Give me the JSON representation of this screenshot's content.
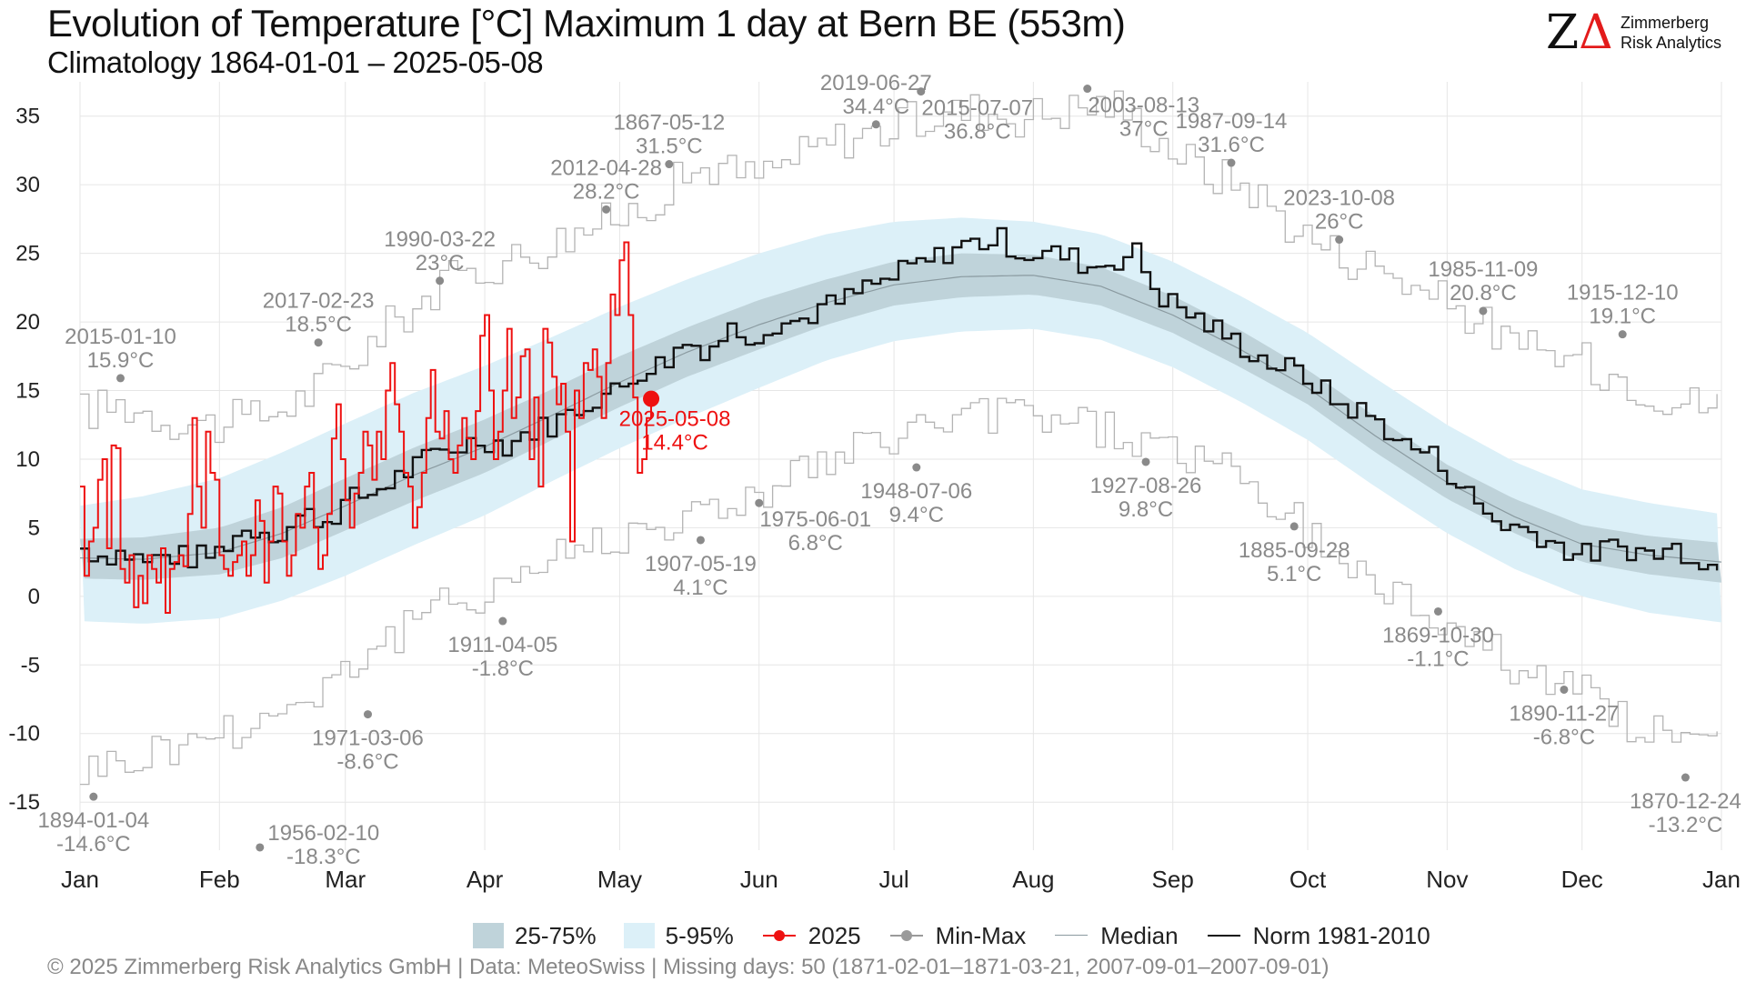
{
  "header": {
    "title": "Evolution of Temperature [°C] Maximum 1 day at Bern  BE (553m)",
    "subtitle": "Climatology 1864-01-01 – 2025-05-08"
  },
  "logo": {
    "mark": "ZΔ",
    "line1": "Zimmerberg",
    "line2": "Risk Analytics"
  },
  "footer": "©  2025 Zimmerberg Risk Analytics GmbH | Data: MeteoSwiss | Missing days: 50 (1871-02-01–1871-03-21, 2007-09-01–2007-09-01)",
  "colors": {
    "band_25_75": "#bfd3da",
    "band_5_95": "#dcf0f8",
    "current_year": "#ee1111",
    "minmax": "#b4b4b4",
    "minmax_label": "#8a8a8a",
    "median": "#8a9aa0",
    "norm": "#111111",
    "grid": "#e6e6e6"
  },
  "chart_data": {
    "type": "line",
    "ylim": [
      -18.5,
      37.5
    ],
    "yticks": [
      -15,
      -10,
      -5,
      0,
      5,
      10,
      15,
      20,
      25,
      30,
      35
    ],
    "xlim": [
      1,
      366
    ],
    "xticks": [
      {
        "label": "Jan",
        "day": 1
      },
      {
        "label": "Feb",
        "day": 32
      },
      {
        "label": "Mar",
        "day": 60
      },
      {
        "label": "Apr",
        "day": 91
      },
      {
        "label": "May",
        "day": 121
      },
      {
        "label": "Jun",
        "day": 152
      },
      {
        "label": "Jul",
        "day": 182
      },
      {
        "label": "Aug",
        "day": 213
      },
      {
        "label": "Sep",
        "day": 244
      },
      {
        "label": "Oct",
        "day": 274
      },
      {
        "label": "Nov",
        "day": 305
      },
      {
        "label": "Dec",
        "day": 335
      },
      {
        "label": "Jan",
        "day": 366
      }
    ],
    "grid": true,
    "legend_position": "bottom",
    "legend": [
      {
        "label": "25-75%",
        "kind": "band_25_75"
      },
      {
        "label": "5-95%",
        "kind": "band_5_95"
      },
      {
        "label": "2025",
        "kind": "current_year"
      },
      {
        "label": "Min-Max",
        "kind": "minmax"
      },
      {
        "label": "Median",
        "kind": "median"
      },
      {
        "label": "Norm 1981-2010",
        "kind": "norm"
      }
    ],
    "climatology": {
      "days": [
        1,
        15,
        32,
        46,
        60,
        75,
        91,
        106,
        121,
        136,
        152,
        167,
        182,
        197,
        213,
        228,
        244,
        259,
        274,
        289,
        305,
        320,
        335,
        350,
        366
      ],
      "median": [
        2.8,
        2.7,
        3.2,
        4.6,
        6.6,
        8.8,
        10.9,
        13.2,
        15.6,
        17.8,
        19.8,
        21.4,
        22.7,
        23.3,
        23.4,
        22.6,
        20.5,
        18.0,
        15.2,
        11.7,
        8.3,
        5.8,
        3.8,
        3.0,
        2.5
      ],
      "p25": [
        1.3,
        1.2,
        1.6,
        2.8,
        4.8,
        6.9,
        9.0,
        11.4,
        13.8,
        16.0,
        18.0,
        19.8,
        21.2,
        21.8,
        22.0,
        21.2,
        19.2,
        16.7,
        14.0,
        10.5,
        7.1,
        4.6,
        2.5,
        1.6,
        1.0
      ],
      "p75": [
        4.2,
        4.3,
        5.0,
        6.5,
        8.6,
        10.8,
        12.9,
        15.1,
        17.5,
        19.6,
        21.6,
        23.1,
        24.4,
        25.0,
        24.9,
        24.0,
        21.9,
        19.4,
        16.5,
        13.1,
        9.6,
        7.1,
        5.2,
        4.4,
        3.9
      ],
      "p05": [
        -1.8,
        -2.0,
        -1.6,
        -0.3,
        1.5,
        3.7,
        5.9,
        8.4,
        10.8,
        13.0,
        15.2,
        17.2,
        18.6,
        19.3,
        19.5,
        18.7,
        16.7,
        14.2,
        11.4,
        8.0,
        4.6,
        2.0,
        0.0,
        -1.2,
        -1.9
      ],
      "p95": [
        6.6,
        7.3,
        8.6,
        10.5,
        12.6,
        14.8,
        16.8,
        18.9,
        21.1,
        23.1,
        25.0,
        26.4,
        27.3,
        27.6,
        27.3,
        26.4,
        24.4,
        21.9,
        19.2,
        15.9,
        12.5,
        9.8,
        7.8,
        6.8,
        6.0
      ]
    },
    "series": [
      {
        "name": "2025",
        "days": [
          1,
          2,
          3,
          4,
          5,
          6,
          7,
          8,
          9,
          10,
          11,
          12,
          13,
          14,
          15,
          16,
          17,
          18,
          19,
          20,
          21,
          22,
          23,
          24,
          25,
          26,
          27,
          28,
          29,
          30,
          31,
          32,
          33,
          34,
          35,
          36,
          37,
          38,
          39,
          40,
          41,
          42,
          43,
          44,
          45,
          46,
          47,
          48,
          49,
          50,
          51,
          52,
          53,
          54,
          55,
          56,
          57,
          58,
          59,
          60,
          61,
          62,
          63,
          64,
          65,
          66,
          67,
          68,
          69,
          70,
          71,
          72,
          73,
          74,
          75,
          76,
          77,
          78,
          79,
          80,
          81,
          82,
          83,
          84,
          85,
          86,
          87,
          88,
          89,
          90,
          91,
          92,
          93,
          94,
          95,
          96,
          97,
          98,
          99,
          100,
          101,
          102,
          103,
          104,
          105,
          106,
          107,
          108,
          109,
          110,
          111,
          112,
          113,
          114,
          115,
          116,
          117,
          118,
          119,
          120,
          121,
          122,
          123,
          124,
          125,
          126,
          127,
          128
        ],
        "values": [
          8.0,
          1.5,
          4.0,
          5.0,
          8.5,
          10.0,
          3.5,
          11.0,
          10.8,
          2.0,
          1.0,
          3.0,
          -0.8,
          1.5,
          -0.5,
          3.0,
          2.0,
          1.0,
          3.5,
          -1.2,
          2.0,
          2.5,
          3.0,
          2.2,
          6.0,
          13.0,
          8.0,
          5.0,
          12.0,
          9.0,
          8.5,
          3.0,
          2.0,
          1.5,
          2.5,
          3.0,
          4.0,
          1.5,
          3.0,
          7.0,
          5.5,
          1.0,
          4.0,
          8.0,
          7.5,
          4.0,
          1.5,
          3.0,
          6.0,
          5.0,
          8.0,
          9.0,
          5.0,
          2.0,
          3.0,
          6.0,
          11.5,
          14.0,
          10.0,
          7.0,
          5.0,
          7.5,
          9.0,
          12.0,
          11.0,
          8.5,
          12.0,
          10.0,
          15.0,
          17.0,
          14.0,
          12.0,
          9.0,
          8.0,
          5.0,
          6.5,
          9.0,
          13.0,
          16.5,
          12.0,
          11.5,
          13.5,
          10.0,
          9.0,
          11.0,
          13.0,
          11.5,
          10.0,
          13.5,
          19.0,
          20.5,
          15.0,
          10.0,
          12.0,
          15.0,
          19.5,
          13.0,
          14.5,
          17.5,
          18.0,
          10.0,
          14.5,
          8.0,
          19.5,
          18.5,
          16.0,
          14.0,
          15.5,
          12.0,
          4.0,
          15.0,
          13.0,
          17.0,
          16.5,
          18.0,
          16.0,
          13.0,
          17.0,
          22.0,
          20.5,
          24.5,
          25.8,
          20.5,
          14.5,
          9.0,
          10.0,
          13.0,
          14.4
        ]
      },
      {
        "name": "Min-Max",
        "role": "max",
        "days": [
          1,
          10,
          20,
          30,
          40,
          50,
          60,
          70,
          80,
          90,
          100,
          110,
          120,
          130,
          140,
          150,
          160,
          170,
          180,
          190,
          200,
          210,
          220,
          230,
          240,
          250,
          260,
          270,
          280,
          290,
          300,
          310,
          320,
          330,
          340,
          350,
          360,
          366
        ],
        "values": [
          13.5,
          14.0,
          13.0,
          12.5,
          13.0,
          14.5,
          17.0,
          20.0,
          22.5,
          24.0,
          25.0,
          26.5,
          27.5,
          29.5,
          31.5,
          30.5,
          32.0,
          33.5,
          34.0,
          35.0,
          35.5,
          35.0,
          35.5,
          36.0,
          33.5,
          31.0,
          30.0,
          27.0,
          25.0,
          24.0,
          22.0,
          20.5,
          18.0,
          17.5,
          16.5,
          15.0,
          14.0,
          14.0
        ]
      },
      {
        "name": "Min-Max",
        "role": "min",
        "days": [
          1,
          10,
          20,
          30,
          40,
          50,
          60,
          70,
          80,
          90,
          100,
          110,
          120,
          130,
          140,
          150,
          160,
          170,
          180,
          190,
          200,
          210,
          220,
          230,
          240,
          250,
          260,
          270,
          280,
          290,
          300,
          310,
          320,
          330,
          340,
          350,
          360,
          366
        ],
        "values": [
          -12.5,
          -12.0,
          -11.0,
          -10.0,
          -9.0,
          -7.5,
          -5.0,
          -3.0,
          -1.0,
          0.5,
          2.0,
          3.5,
          4.5,
          5.5,
          6.0,
          7.5,
          9.0,
          10.0,
          11.5,
          12.5,
          13.0,
          13.5,
          13.0,
          12.0,
          11.0,
          10.0,
          8.0,
          5.5,
          3.0,
          0.5,
          -1.0,
          -3.0,
          -5.0,
          -6.5,
          -8.0,
          -10.0,
          -11.0,
          -11.0
        ]
      }
    ],
    "norm_1981_2010": {
      "days": [
        1,
        5,
        10,
        15,
        20,
        25,
        30,
        35,
        40,
        45,
        50,
        55,
        60,
        65,
        70,
        75,
        80,
        85,
        90,
        95,
        100,
        105,
        110,
        115,
        120,
        125,
        130,
        135,
        140,
        145,
        150,
        155,
        160,
        165,
        170,
        175,
        180,
        185,
        190,
        195,
        200,
        205,
        210,
        215,
        220,
        225,
        230,
        235,
        240,
        245,
        250,
        255,
        260,
        265,
        270,
        275,
        280,
        285,
        290,
        295,
        300,
        305,
        310,
        315,
        320,
        325,
        330,
        335,
        340,
        345,
        350,
        355,
        360,
        366
      ],
      "values": [
        3.5,
        3.0,
        3.2,
        2.5,
        3.0,
        2.8,
        3.0,
        4.5,
        5.0,
        4.5,
        6.0,
        5.5,
        7.0,
        7.5,
        8.5,
        9.5,
        10.5,
        11.0,
        11.5,
        11.0,
        12.0,
        12.5,
        13.5,
        14.5,
        15.0,
        16.5,
        17.0,
        18.5,
        18.0,
        19.5,
        19.0,
        20.0,
        20.0,
        21.0,
        21.5,
        22.5,
        23.0,
        24.0,
        24.5,
        25.5,
        25.8,
        26.0,
        25.0,
        25.0,
        24.8,
        24.0,
        24.5,
        25.0,
        22.0,
        21.0,
        20.0,
        19.0,
        18.0,
        17.0,
        16.5,
        15.5,
        14.0,
        13.5,
        12.5,
        11.0,
        10.5,
        9.0,
        7.0,
        5.5,
        5.0,
        4.5,
        3.5,
        3.0,
        3.5,
        3.5,
        3.0,
        3.5,
        3.0,
        1.6
      ]
    },
    "annotations": [
      {
        "date": "2015-01-10",
        "value": 15.9,
        "day": 10,
        "text": "2015-01-10",
        "sub": "15.9°C",
        "pos": "above"
      },
      {
        "date": "1894-01-04",
        "value": -14.6,
        "day": 4,
        "text": "1894-01-04",
        "sub": "-14.6°C",
        "pos": "below"
      },
      {
        "date": "2017-02-23",
        "value": 18.5,
        "day": 54,
        "text": "2017-02-23",
        "sub": "18.5°C",
        "pos": "above"
      },
      {
        "date": "1956-02-10",
        "value": -18.3,
        "day": 41,
        "text": "1956-02-10",
        "sub": "-18.3°C",
        "pos": "upper"
      },
      {
        "date": "1990-03-22",
        "value": 23.0,
        "day": 81,
        "text": "1990-03-22",
        "sub": "23°C",
        "pos": "above"
      },
      {
        "date": "1971-03-06",
        "value": -8.6,
        "day": 65,
        "text": "1971-03-06",
        "sub": "-8.6°C",
        "pos": "below"
      },
      {
        "date": "2012-04-28",
        "value": 28.2,
        "day": 118,
        "text": "2012-04-28",
        "sub": "28.2°C",
        "pos": "above"
      },
      {
        "date": "1911-04-05",
        "value": -1.8,
        "day": 95,
        "text": "1911-04-05",
        "sub": "-1.8°C",
        "pos": "below"
      },
      {
        "date": "1867-05-12",
        "value": 31.5,
        "day": 132,
        "text": "1867-05-12",
        "sub": "31.5°C",
        "pos": "above"
      },
      {
        "date": "1907-05-19",
        "value": 4.1,
        "day": 139,
        "text": "1907-05-19",
        "sub": "4.1°C",
        "pos": "below"
      },
      {
        "date": "2019-06-27",
        "value": 34.4,
        "day": 178,
        "text": "2019-06-27",
        "sub": "34.4°C",
        "pos": "above"
      },
      {
        "date": "1975-06-01",
        "value": 6.8,
        "day": 152,
        "text": "1975-06-01",
        "sub": "6.8°C",
        "pos": "right-below"
      },
      {
        "date": "2015-07-07",
        "value": 36.8,
        "day": 188,
        "text": "2015-07-07",
        "sub": "36.8°C",
        "pos": "right-below"
      },
      {
        "date": "1948-07-06",
        "value": 9.4,
        "day": 187,
        "text": "1948-07-06",
        "sub": "9.4°C",
        "pos": "below"
      },
      {
        "date": "2003-08-13",
        "value": 37.0,
        "day": 225,
        "text": "2003-08-13",
        "sub": "37°C",
        "pos": "right-below"
      },
      {
        "date": "1927-08-26",
        "value": 9.8,
        "day": 238,
        "text": "1927-08-26",
        "sub": "9.8°C",
        "pos": "below"
      },
      {
        "date": "1987-09-14",
        "value": 31.6,
        "day": 257,
        "text": "1987-09-14",
        "sub": "31.6°C",
        "pos": "above"
      },
      {
        "date": "1885-09-28",
        "value": 5.1,
        "day": 271,
        "text": "1885-09-28",
        "sub": "5.1°C",
        "pos": "below"
      },
      {
        "date": "2023-10-08",
        "value": 26.0,
        "day": 281,
        "text": "2023-10-08",
        "sub": "26°C",
        "pos": "above"
      },
      {
        "date": "1869-10-30",
        "value": -1.1,
        "day": 303,
        "text": "1869-10-30",
        "sub": "-1.1°C",
        "pos": "below"
      },
      {
        "date": "1985-11-09",
        "value": 20.8,
        "day": 313,
        "text": "1985-11-09",
        "sub": "20.8°C",
        "pos": "above"
      },
      {
        "date": "1890-11-27",
        "value": -6.8,
        "day": 331,
        "text": "1890-11-27",
        "sub": "-6.8°C",
        "pos": "below"
      },
      {
        "date": "1915-12-10",
        "value": 19.1,
        "day": 344,
        "text": "1915-12-10",
        "sub": "19.1°C",
        "pos": "above"
      },
      {
        "date": "1870-12-24",
        "value": -13.2,
        "day": 358,
        "text": "1870-12-24",
        "sub": "-13.2°C",
        "pos": "below"
      }
    ],
    "current_point": {
      "date": "2025-05-08",
      "day": 128,
      "value": 14.4,
      "text": "2025-05-08",
      "sub": "14.4°C"
    }
  }
}
